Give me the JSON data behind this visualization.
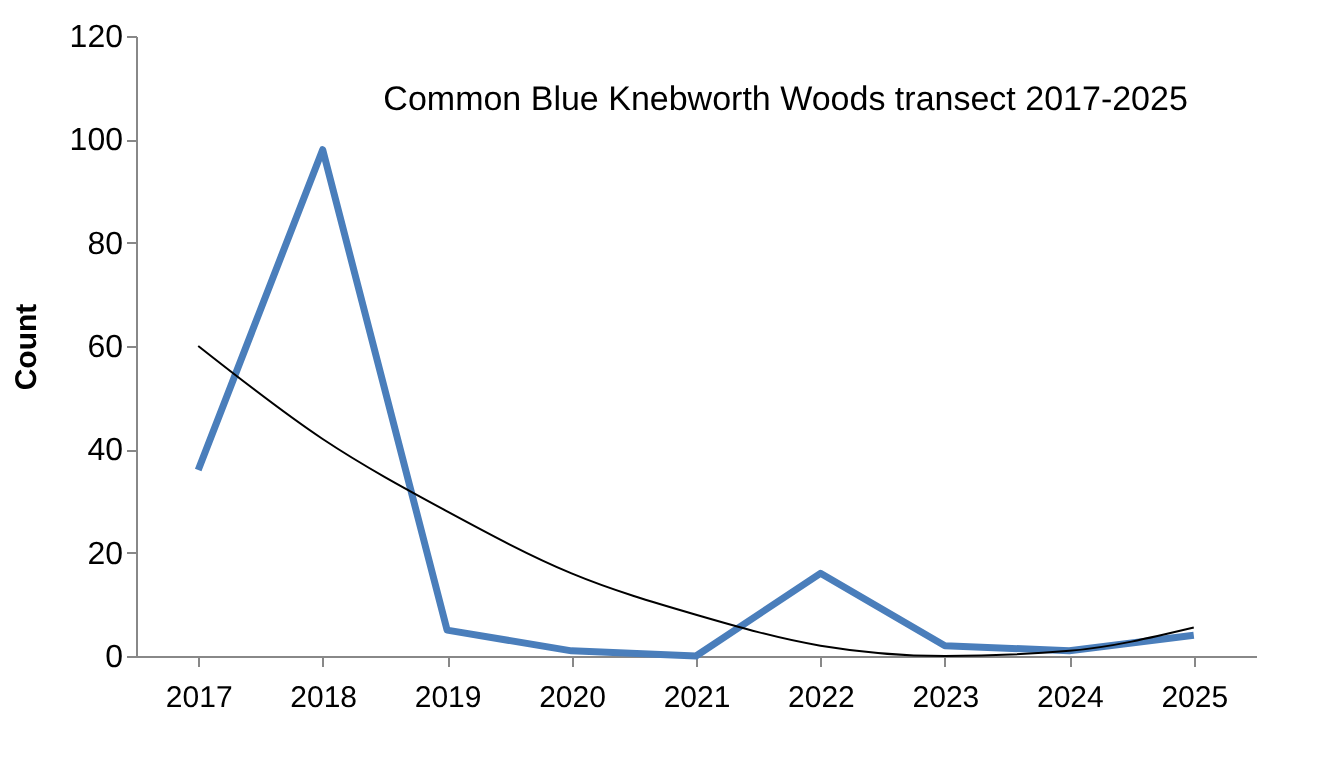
{
  "chart_data": {
    "type": "line",
    "title": "Common Blue Knebworth Woods transect 2017-2025",
    "ylabel": "Count",
    "categories": [
      "2017",
      "2018",
      "2019",
      "2020",
      "2021",
      "2022",
      "2023",
      "2024",
      "2025"
    ],
    "series": [
      {
        "color": "#4a7ebb",
        "values": [
          36,
          98,
          5,
          1,
          0,
          16,
          2,
          1,
          4
        ]
      },
      {
        "type": "line",
        "color": "#000000",
        "values": [
          60,
          42,
          28,
          16,
          8,
          2,
          0,
          1,
          5.5
        ]
      }
    ],
    "ylim": [
      0,
      120
    ],
    "yticks": [
      0,
      20,
      40,
      60,
      80,
      100,
      120
    ],
    "grid": false,
    "marker": "none",
    "line_style": "solid"
  }
}
